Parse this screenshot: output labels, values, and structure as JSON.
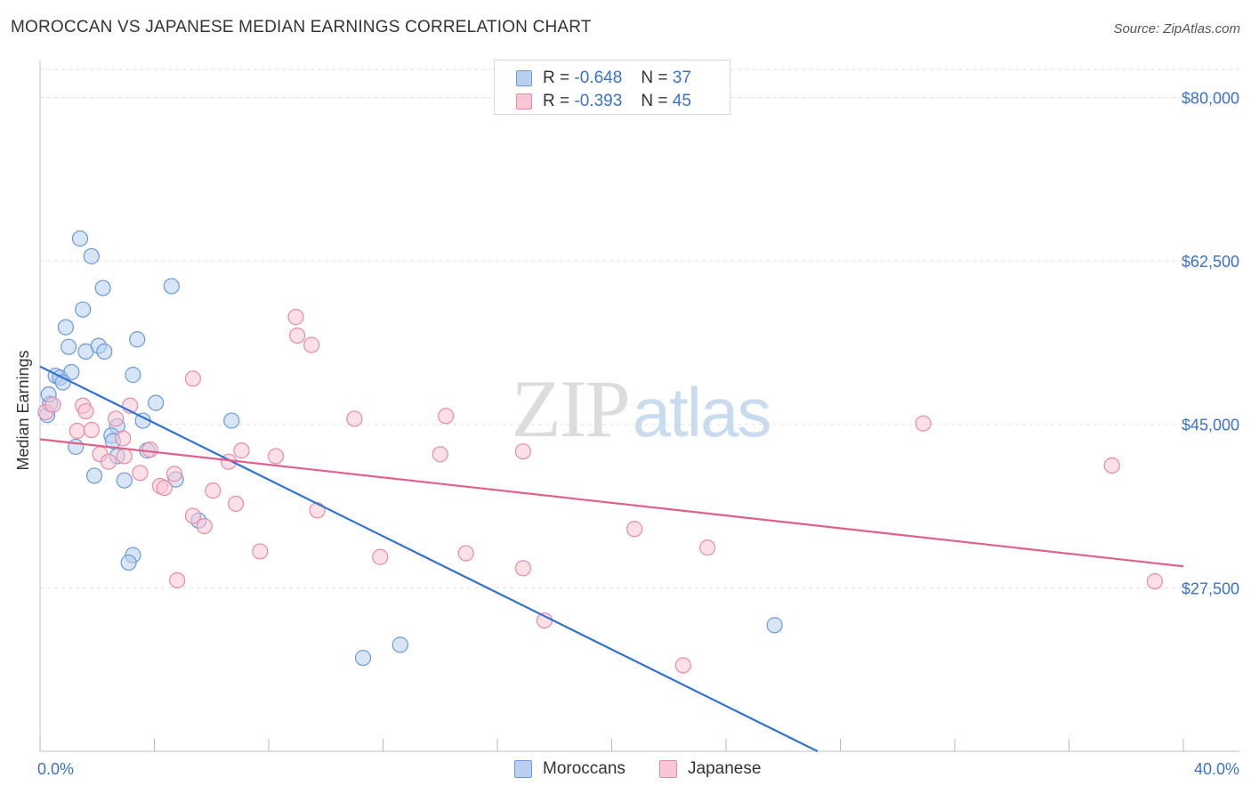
{
  "header": {
    "title": "MOROCCAN VS JAPANESE MEDIAN EARNINGS CORRELATION CHART",
    "source": "Source: ZipAtlas.com"
  },
  "legend": {
    "moroccans": {
      "r_label": "R =",
      "r_value": "-0.648",
      "n_label": "N =",
      "n_value": "37"
    },
    "japanese": {
      "r_label": "R =",
      "r_value": "-0.393",
      "n_label": "N =",
      "n_value": "45"
    }
  },
  "bottom_legend": {
    "moroccans": "Moroccans",
    "japanese": "Japanese"
  },
  "colors": {
    "moroccans_fill": "#b8d0f0",
    "moroccans_stroke": "#6a9ad8",
    "moroccans_line": "#2f72d0",
    "japanese_fill": "#f8c6d4",
    "japanese_stroke": "#e88aa6",
    "japanese_line": "#e0608a",
    "axis_text": "#3a72c8",
    "grid": "#e0e0e0"
  },
  "chart_data": {
    "type": "scatter",
    "title": "MOROCCAN VS JAPANESE MEDIAN EARNINGS CORRELATION CHART",
    "xlabel": "",
    "ylabel": "Median Earnings",
    "xlim": [
      0,
      40
    ],
    "ylim": [
      10000,
      83000
    ],
    "x_tick_labels": [
      "0.0%",
      "40.0%"
    ],
    "y_ticks": [
      27500,
      45000,
      62500,
      80000
    ],
    "y_tick_labels": [
      "$27,500",
      "$45,000",
      "$62,500",
      "$80,000"
    ],
    "grid": true,
    "legend_position": "top-center",
    "watermark": "ZIPatlas",
    "series": [
      {
        "name": "Moroccans",
        "r": -0.648,
        "n": 37,
        "points": [
          [
            0.25,
            46000
          ],
          [
            0.35,
            47200
          ],
          [
            0.3,
            48200
          ],
          [
            0.55,
            50200
          ],
          [
            0.7,
            50000
          ],
          [
            1.1,
            50600
          ],
          [
            0.8,
            49500
          ],
          [
            1.0,
            53300
          ],
          [
            0.9,
            55400
          ],
          [
            1.4,
            64900
          ],
          [
            1.8,
            63000
          ],
          [
            2.2,
            59600
          ],
          [
            1.5,
            57300
          ],
          [
            1.6,
            52800
          ],
          [
            2.05,
            53400
          ],
          [
            2.25,
            52800
          ],
          [
            3.4,
            54100
          ],
          [
            3.25,
            50300
          ],
          [
            4.6,
            59800
          ],
          [
            4.05,
            47300
          ],
          [
            3.6,
            45400
          ],
          [
            2.7,
            44800
          ],
          [
            2.5,
            43800
          ],
          [
            2.55,
            43200
          ],
          [
            1.25,
            42600
          ],
          [
            2.7,
            41600
          ],
          [
            3.75,
            42200
          ],
          [
            1.9,
            39500
          ],
          [
            2.95,
            39000
          ],
          [
            4.75,
            39100
          ],
          [
            5.55,
            34700
          ],
          [
            3.25,
            31000
          ],
          [
            3.1,
            30200
          ],
          [
            6.7,
            45400
          ],
          [
            11.3,
            20000
          ],
          [
            12.6,
            21400
          ],
          [
            25.7,
            23500
          ]
        ]
      },
      {
        "name": "Japanese",
        "r": -0.393,
        "n": 45,
        "points": [
          [
            0.2,
            46300
          ],
          [
            0.45,
            47100
          ],
          [
            1.5,
            47000
          ],
          [
            1.6,
            46400
          ],
          [
            1.3,
            44300
          ],
          [
            1.8,
            44400
          ],
          [
            3.15,
            47000
          ],
          [
            2.65,
            45600
          ],
          [
            2.9,
            43500
          ],
          [
            3.85,
            42300
          ],
          [
            2.1,
            41800
          ],
          [
            2.4,
            41000
          ],
          [
            2.95,
            41600
          ],
          [
            3.5,
            39800
          ],
          [
            4.2,
            38400
          ],
          [
            4.35,
            38200
          ],
          [
            4.7,
            39700
          ],
          [
            5.35,
            35200
          ],
          [
            5.75,
            34100
          ],
          [
            6.05,
            37900
          ],
          [
            5.35,
            49900
          ],
          [
            6.6,
            41000
          ],
          [
            7.05,
            42200
          ],
          [
            6.85,
            36500
          ],
          [
            7.7,
            31400
          ],
          [
            8.25,
            41600
          ],
          [
            8.95,
            56500
          ],
          [
            9.0,
            54500
          ],
          [
            9.5,
            53500
          ],
          [
            9.7,
            35800
          ],
          [
            4.8,
            28300
          ],
          [
            11.0,
            45600
          ],
          [
            11.9,
            30800
          ],
          [
            14.2,
            45900
          ],
          [
            14.0,
            41800
          ],
          [
            14.9,
            31200
          ],
          [
            16.9,
            42100
          ],
          [
            16.9,
            29600
          ],
          [
            17.65,
            24000
          ],
          [
            20.8,
            33800
          ],
          [
            22.5,
            19200
          ],
          [
            23.35,
            31800
          ],
          [
            30.9,
            45100
          ],
          [
            37.5,
            40600
          ],
          [
            39.0,
            28200
          ]
        ]
      }
    ],
    "trend_lines": [
      {
        "series": "Moroccans",
        "x": [
          0,
          27.2
        ],
        "y": [
          51200,
          10000
        ]
      },
      {
        "series": "Japanese",
        "x": [
          0,
          40
        ],
        "y": [
          43400,
          29800
        ]
      }
    ]
  }
}
